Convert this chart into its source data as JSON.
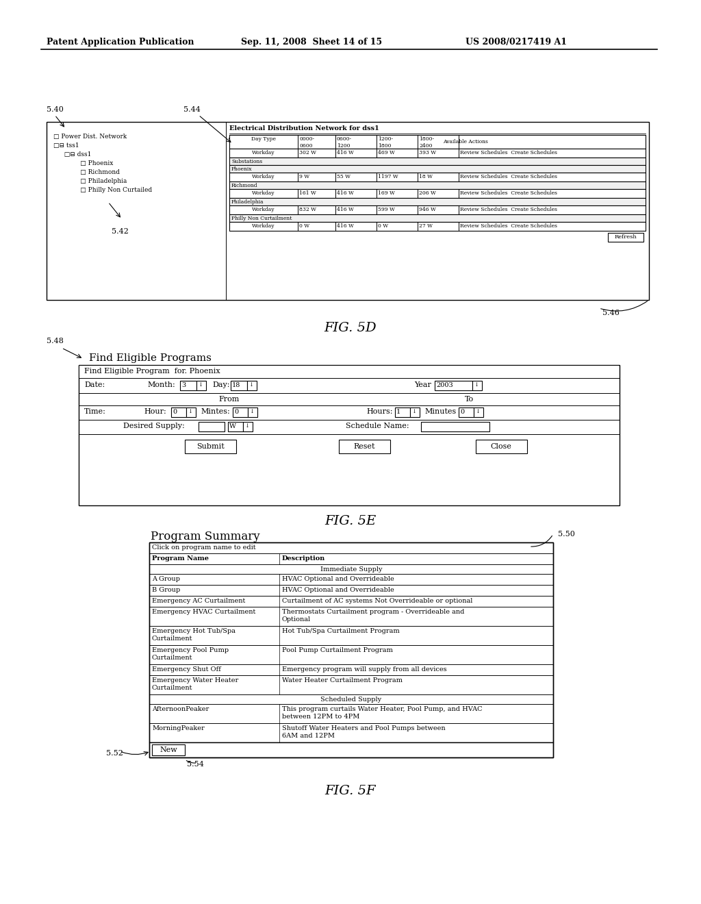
{
  "bg_color": "#ffffff",
  "header_left": "Patent Application Publication",
  "header_mid": "Sep. 11, 2008  Sheet 14 of 15",
  "header_right": "US 2008/0217419 A1",
  "fig5d_label": "FIG. 5D",
  "fig5e_label": "FIG. 5E",
  "fig5f_label": "FIG. 5F",
  "label_540": "5.40",
  "label_542": "5.42",
  "label_544": "5.44",
  "label_546": "5.46",
  "label_548": "5.48",
  "label_550": "5.50",
  "label_552": "5.52",
  "label_554": "5.54",
  "elec_title": "Electrical Distribution Network for dss1",
  "substations": "Substations",
  "phoenix_lbl": "Phoenix",
  "richmond_lbl": "Richmond",
  "philadelphia_lbl": "Philadelphia",
  "philly_non_lbl": "Philly Non Curtailment",
  "refresh": "Refresh",
  "find_title": "Find Eligible Programs",
  "find_header": "Find Eligible Program  for. Phoenix",
  "submit": "Submit",
  "reset": "Reset",
  "close": "Close",
  "prog_title": "Program Summary",
  "prog_click": "Click on program name to edit",
  "prog_col1": "Program Name",
  "prog_col2": "Description",
  "imm_supply": "Immediate Supply",
  "sched_supply": "Scheduled Supply",
  "new_btn": "New",
  "prog_rows": [
    [
      "A Group",
      "HVAC Optional and Overrideable"
    ],
    [
      "B Group",
      "HVAC Optional and Overrideable"
    ],
    [
      "Emergency AC Curtailment",
      "Curtailment of AC systems Not Overrideable or optional"
    ],
    [
      "Emergency HVAC Curtailment",
      "Thermostats Curtailment program - Overrideable and\nOptional"
    ],
    [
      "Emergency Hot Tub/Spa\nCurtailment",
      "Hot Tub/Spa Curtailment Program"
    ],
    [
      "Emergency Pool Pump\nCurtailment",
      "Pool Pump Curtailment Program"
    ],
    [
      "Emergency Shut Off",
      "Emergency program will supply from all devices"
    ],
    [
      "Emergency Water Heater\nCurtailment",
      "Water Heater Curtailment Program"
    ],
    [
      "AfternoonPeaker",
      "This program curtails Water Heater, Pool Pump, and HVAC\nbetween 12PM to 4PM"
    ],
    [
      "MorningPeaker",
      "Shutoff Water Heaters and Pool Pumps between\n6AM and 12PM"
    ]
  ]
}
